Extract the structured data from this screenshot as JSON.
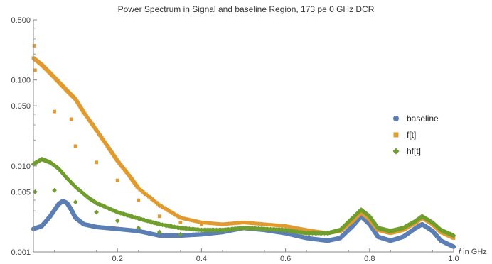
{
  "chart_data": {
    "type": "scatter",
    "title": "Power Spectrum in Signal and baseline Region,  173 pe 0 GHz DCR",
    "xlabel_italic": "f",
    "xlabel_rest": " in GHz",
    "ylabel": "",
    "y_scale": "log",
    "xlim": [
      0.0,
      1.0
    ],
    "ylim": [
      0.001,
      0.5
    ],
    "x_ticks": [
      0.2,
      0.4,
      0.6,
      0.8,
      1.0
    ],
    "x_tick_labels": [
      "0.2",
      "0.4",
      "0.6",
      "0.8",
      "1.0"
    ],
    "y_ticks": [
      0.001,
      0.005,
      0.01,
      0.05,
      0.1,
      0.5
    ],
    "y_tick_labels": [
      "0.001",
      "0.005",
      "0.010",
      "0.050",
      "0.100",
      "0.500"
    ],
    "grid": false,
    "legend_position": "right",
    "series": [
      {
        "name": "baseline",
        "marker": "circle",
        "color": "#5b7fb5",
        "points": [
          [
            0.0,
            0.00185
          ],
          [
            0.02,
            0.002
          ],
          [
            0.04,
            0.0026
          ],
          [
            0.06,
            0.0036
          ],
          [
            0.07,
            0.0039
          ],
          [
            0.08,
            0.0037
          ],
          [
            0.09,
            0.0031
          ],
          [
            0.1,
            0.0025
          ],
          [
            0.12,
            0.0021
          ],
          [
            0.15,
            0.00195
          ],
          [
            0.2,
            0.00185
          ],
          [
            0.25,
            0.00175
          ],
          [
            0.3,
            0.00155
          ],
          [
            0.35,
            0.00155
          ],
          [
            0.4,
            0.0016
          ],
          [
            0.45,
            0.0017
          ],
          [
            0.5,
            0.0019
          ],
          [
            0.55,
            0.0018
          ],
          [
            0.6,
            0.00165
          ],
          [
            0.65,
            0.00145
          ],
          [
            0.7,
            0.00135
          ],
          [
            0.73,
            0.00145
          ],
          [
            0.76,
            0.002
          ],
          [
            0.78,
            0.0026
          ],
          [
            0.8,
            0.0021
          ],
          [
            0.82,
            0.0015
          ],
          [
            0.85,
            0.00135
          ],
          [
            0.88,
            0.0015
          ],
          [
            0.91,
            0.0019
          ],
          [
            0.925,
            0.0021
          ],
          [
            0.95,
            0.00175
          ],
          [
            0.97,
            0.00135
          ],
          [
            1.0,
            0.00115
          ]
        ]
      },
      {
        "name": "f[t]",
        "marker": "square",
        "color": "#e09a2e",
        "points": [
          [
            0.0,
            0.18
          ],
          [
            0.02,
            0.15
          ],
          [
            0.04,
            0.12
          ],
          [
            0.06,
            0.095
          ],
          [
            0.08,
            0.075
          ],
          [
            0.1,
            0.06
          ],
          [
            0.12,
            0.042
          ],
          [
            0.15,
            0.026
          ],
          [
            0.18,
            0.016
          ],
          [
            0.2,
            0.0115
          ],
          [
            0.23,
            0.0075
          ],
          [
            0.25,
            0.0055
          ],
          [
            0.3,
            0.0035
          ],
          [
            0.35,
            0.0025
          ],
          [
            0.4,
            0.0022
          ],
          [
            0.45,
            0.0021
          ],
          [
            0.5,
            0.0022
          ],
          [
            0.55,
            0.0021
          ],
          [
            0.6,
            0.002
          ],
          [
            0.65,
            0.0018
          ],
          [
            0.7,
            0.00165
          ],
          [
            0.73,
            0.00175
          ],
          [
            0.76,
            0.0023
          ],
          [
            0.78,
            0.0029
          ],
          [
            0.8,
            0.0024
          ],
          [
            0.82,
            0.0018
          ],
          [
            0.85,
            0.00165
          ],
          [
            0.88,
            0.0018
          ],
          [
            0.91,
            0.0022
          ],
          [
            0.925,
            0.0025
          ],
          [
            0.95,
            0.0021
          ],
          [
            0.97,
            0.0017
          ],
          [
            1.0,
            0.00145
          ]
        ],
        "outliers": [
          [
            0.002,
            0.25
          ],
          [
            0.004,
            0.13
          ],
          [
            0.05,
            0.043
          ],
          [
            0.09,
            0.035
          ],
          [
            0.1,
            0.017
          ],
          [
            0.15,
            0.011
          ],
          [
            0.2,
            0.0068
          ],
          [
            0.25,
            0.004
          ],
          [
            0.3,
            0.0026
          ],
          [
            0.35,
            0.0022
          ],
          [
            0.4,
            0.0021
          ]
        ]
      },
      {
        "name": "hf[t]",
        "marker": "diamond",
        "color": "#6f9e2c",
        "points": [
          [
            0.0,
            0.0105
          ],
          [
            0.02,
            0.012
          ],
          [
            0.04,
            0.011
          ],
          [
            0.06,
            0.0093
          ],
          [
            0.08,
            0.0072
          ],
          [
            0.1,
            0.0057
          ],
          [
            0.13,
            0.0043
          ],
          [
            0.15,
            0.0037
          ],
          [
            0.2,
            0.0029
          ],
          [
            0.25,
            0.00245
          ],
          [
            0.3,
            0.0021
          ],
          [
            0.35,
            0.0019
          ],
          [
            0.4,
            0.0018
          ],
          [
            0.45,
            0.0018
          ],
          [
            0.5,
            0.0019
          ],
          [
            0.55,
            0.00185
          ],
          [
            0.6,
            0.0018
          ],
          [
            0.65,
            0.00165
          ],
          [
            0.7,
            0.00165
          ],
          [
            0.73,
            0.0018
          ],
          [
            0.76,
            0.0025
          ],
          [
            0.78,
            0.0031
          ],
          [
            0.8,
            0.0026
          ],
          [
            0.82,
            0.0019
          ],
          [
            0.85,
            0.00175
          ],
          [
            0.88,
            0.0019
          ],
          [
            0.91,
            0.0023
          ],
          [
            0.925,
            0.0026
          ],
          [
            0.95,
            0.0022
          ],
          [
            0.97,
            0.0018
          ],
          [
            1.0,
            0.00155
          ]
        ],
        "outliers": [
          [
            0.004,
            0.005
          ],
          [
            0.05,
            0.0052
          ],
          [
            0.1,
            0.0038
          ],
          [
            0.15,
            0.0029
          ],
          [
            0.2,
            0.0023
          ],
          [
            0.25,
            0.0019
          ],
          [
            0.3,
            0.0017
          ],
          [
            0.35,
            0.0016
          ]
        ]
      }
    ]
  }
}
